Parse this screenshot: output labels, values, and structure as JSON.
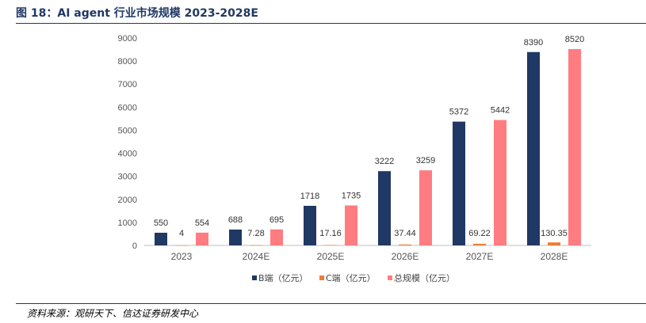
{
  "figure": {
    "title": "图 18：AI agent 行业市场规模 2023-2028E",
    "source": "资料来源：观研天下、信达证券研发中心"
  },
  "chart_data": {
    "type": "bar",
    "categories": [
      "2023",
      "2024E",
      "2025E",
      "2026E",
      "2027E",
      "2028E"
    ],
    "series": [
      {
        "name": "B端（亿元）",
        "color": "#1f3864",
        "values": [
          550,
          688,
          1718,
          3222,
          5372,
          8390
        ]
      },
      {
        "name": "C端（亿元）",
        "color": "#ed7d31",
        "values": [
          4,
          7.28,
          17.16,
          37.44,
          69.22,
          130.35
        ]
      },
      {
        "name": "总规模（亿元）",
        "color": "#ff7c80",
        "values": [
          554,
          695,
          1735,
          3259,
          5442,
          8520
        ]
      }
    ],
    "data_labels": [
      [
        "550",
        "688",
        "1718",
        "3222",
        "5372",
        "8390"
      ],
      [
        "4",
        "7.28",
        "17.16",
        "37.44",
        "69.22",
        "130.35"
      ],
      [
        "554",
        "695",
        "1735",
        "3259",
        "5442",
        "8520"
      ]
    ],
    "yticks": [
      "0",
      "1000",
      "2000",
      "3000",
      "4000",
      "5000",
      "6000",
      "7000",
      "8000",
      "9000"
    ],
    "ylim": [
      0,
      9000
    ],
    "grid": false,
    "legend": "bottom"
  }
}
